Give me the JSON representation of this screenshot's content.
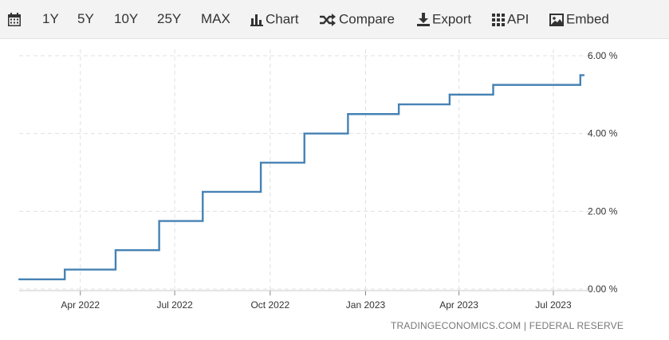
{
  "toolbar": {
    "calendar_icon": "calendar-icon",
    "ranges": [
      "1Y",
      "5Y",
      "10Y",
      "25Y",
      "MAX"
    ],
    "chart_label": "Chart",
    "compare_label": "Compare",
    "export_label": "Export",
    "api_label": "API",
    "embed_label": "Embed"
  },
  "source": "TRADINGECONOMICS.COM | FEDERAL RESERVE",
  "colors": {
    "line": "#4682b4",
    "grid": "#e0e0e0",
    "text": "#333333"
  },
  "chart_data": {
    "type": "line",
    "step": true,
    "x_tick_labels": [
      "Apr 2022",
      "Jul 2022",
      "Oct 2022",
      "Jan 2023",
      "Apr 2023",
      "Jul 2023"
    ],
    "y_tick_labels": [
      "0.00 %",
      "2.00 %",
      "4.00 %",
      "6.00 %"
    ],
    "y_ticks": [
      0,
      2,
      4,
      6
    ],
    "ylim": [
      0,
      6
    ],
    "xlim": [
      "2022-02-01",
      "2023-07-31"
    ],
    "grid": true,
    "series": [
      {
        "points": [
          {
            "x": "2022-02-01",
            "y": 0.25
          },
          {
            "x": "2022-03-17",
            "y": 0.5
          },
          {
            "x": "2022-05-05",
            "y": 1.0
          },
          {
            "x": "2022-06-16",
            "y": 1.75
          },
          {
            "x": "2022-07-28",
            "y": 2.5
          },
          {
            "x": "2022-09-22",
            "y": 3.25
          },
          {
            "x": "2022-11-03",
            "y": 4.0
          },
          {
            "x": "2022-12-15",
            "y": 4.5
          },
          {
            "x": "2023-02-02",
            "y": 4.75
          },
          {
            "x": "2023-03-23",
            "y": 5.0
          },
          {
            "x": "2023-05-04",
            "y": 5.25
          },
          {
            "x": "2023-07-27",
            "y": 5.5
          }
        ]
      }
    ]
  }
}
